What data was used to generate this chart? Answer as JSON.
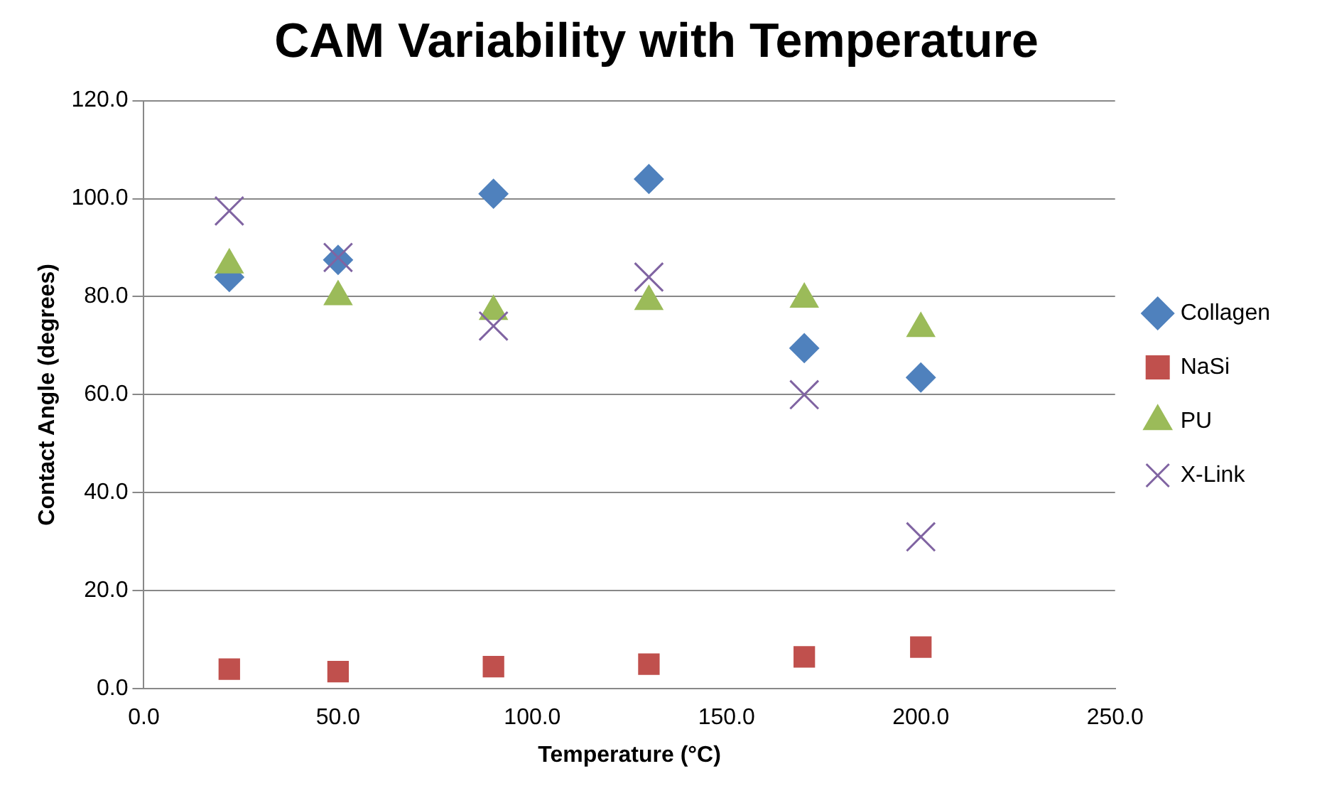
{
  "chart_data": {
    "type": "scatter",
    "title": "CAM Variability with Temperature",
    "xlabel": "Temperature (°C)",
    "ylabel": "Contact Angle (degrees)",
    "x": [
      22,
      50,
      90,
      130,
      170,
      200
    ],
    "series": [
      {
        "name": "Collagen",
        "color": "#4f81bd",
        "marker": "diamond",
        "values": [
          84,
          87.5,
          101,
          104,
          69.5,
          63.5
        ]
      },
      {
        "name": "NaSi",
        "color": "#c0504d",
        "marker": "square",
        "values": [
          4,
          3.5,
          4.5,
          5,
          6.5,
          8.5
        ]
      },
      {
        "name": "PU",
        "color": "#9bbb59",
        "marker": "triangle",
        "values": [
          86.5,
          80,
          77,
          79,
          79.5,
          73.5
        ]
      },
      {
        "name": "X-Link",
        "color": "#8064a2",
        "marker": "cross",
        "values": [
          97.5,
          88,
          74,
          84,
          60,
          31
        ]
      }
    ],
    "xlim": [
      0,
      250
    ],
    "xticks": [
      {
        "value": 0,
        "label": "0.0"
      },
      {
        "value": 50,
        "label": "50.0"
      },
      {
        "value": 100,
        "label": "100.0"
      },
      {
        "value": 150,
        "label": "150.0"
      },
      {
        "value": 200,
        "label": "200.0"
      },
      {
        "value": 250,
        "label": "250.0"
      }
    ],
    "ylim": [
      0,
      120
    ],
    "yticks": [
      {
        "value": 0,
        "label": "0.0"
      },
      {
        "value": 20,
        "label": "20.0"
      },
      {
        "value": 40,
        "label": "40.0"
      },
      {
        "value": 60,
        "label": "60.0"
      },
      {
        "value": 80,
        "label": "80.0"
      },
      {
        "value": 100,
        "label": "100.0"
      },
      {
        "value": 120,
        "label": "120.0"
      }
    ],
    "grid": "y",
    "legend": "right"
  }
}
